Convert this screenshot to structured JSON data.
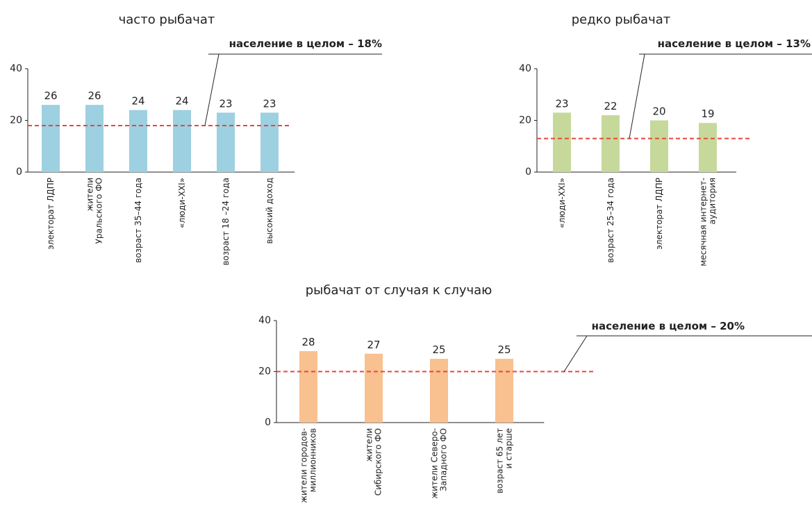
{
  "chart_data": [
    {
      "type": "bar",
      "title": "часто рыбачат",
      "categories": [
        "электорат ЛДПР",
        "жители\nУральского ФО",
        "возраст 35–44 года",
        "«люди-XXI»",
        "возраст 18 –24 года",
        "высокий доход"
      ],
      "values": [
        26,
        26,
        24,
        24,
        23,
        23
      ],
      "color": "#9dd0e0",
      "ylim": [
        0,
        40
      ],
      "yticks": [
        0,
        20,
        40
      ],
      "reference": {
        "value": 18,
        "label": "население в целом – 18%",
        "color": "#e8453c"
      }
    },
    {
      "type": "bar",
      "title": "редко рыбачат",
      "categories": [
        "«люди-XXI»",
        "возраст 25–34 года",
        "электорат ЛДПР",
        "месячная интернет-\nаудитория"
      ],
      "values": [
        23,
        22,
        20,
        19
      ],
      "color": "#c6d99b",
      "ylim": [
        0,
        40
      ],
      "yticks": [
        0,
        20,
        40
      ],
      "reference": {
        "value": 13,
        "label": "население в целом – 13%",
        "color": "#e8453c"
      }
    },
    {
      "type": "bar",
      "title": "рыбачат от случая к случаю",
      "categories": [
        "жители городов-\nмиллионников",
        "жители\nСибирского ФО",
        "жители Северо-\nЗападного ФО",
        "возраст 65 лет\nи старше"
      ],
      "values": [
        28,
        27,
        25,
        25
      ],
      "color": "#f9c090",
      "ylim": [
        0,
        40
      ],
      "yticks": [
        0,
        20,
        40
      ],
      "reference": {
        "value": 20,
        "label": "население в целом – 20%",
        "color": "#e8453c"
      }
    }
  ]
}
